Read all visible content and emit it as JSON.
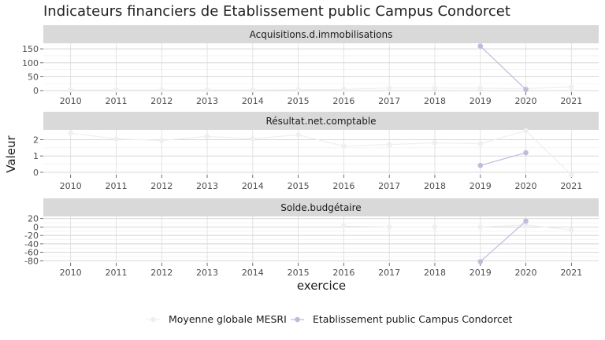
{
  "chart_data": {
    "type": "line",
    "title": "Indicateurs financiers de Etablissement public Campus Condorcet",
    "xlabel": "exercice",
    "ylabel": "Valeur",
    "x": [
      2010,
      2011,
      2012,
      2013,
      2014,
      2015,
      2016,
      2017,
      2018,
      2019,
      2020,
      2021
    ],
    "legend_position": "bottom",
    "grid": true,
    "series_styles": [
      {
        "name": "Moyenne globale MESRI",
        "color": "#efefef"
      },
      {
        "name": "Etablissement public Campus Condorcet",
        "color": "#bcbddc"
      }
    ],
    "panels": [
      {
        "strip": "Acquisitions.d.immobilisations",
        "ylim": [
          -5,
          170
        ],
        "yticks": [
          0,
          50,
          100,
          150
        ],
        "series": [
          {
            "name": "Moyenne globale MESRI",
            "values": [
              3,
              3,
              3,
              3,
              3,
              4,
              5,
              10,
              10,
              9,
              8,
              13
            ]
          },
          {
            "name": "Etablissement public Campus Condorcet",
            "values": [
              null,
              null,
              null,
              null,
              null,
              null,
              null,
              null,
              null,
              160,
              4,
              null
            ]
          }
        ]
      },
      {
        "strip": "Résultat.net.comptable",
        "ylim": [
          -0.15,
          2.6
        ],
        "yticks": [
          0,
          1,
          2
        ],
        "series": [
          {
            "name": "Moyenne globale MESRI",
            "values": [
              2.4,
              2.05,
              1.95,
              2.2,
              2.05,
              2.3,
              1.6,
              1.7,
              1.8,
              1.75,
              2.55,
              -0.15
            ]
          },
          {
            "name": "Etablissement public Campus Condorcet",
            "values": [
              null,
              null,
              null,
              null,
              null,
              null,
              null,
              null,
              null,
              0.42,
              1.2,
              null
            ]
          }
        ]
      },
      {
        "strip": "Solde.budgétaire",
        "ylim": [
          -85,
          25
        ],
        "yticks": [
          20,
          0,
          -20,
          -40,
          -60,
          -80
        ],
        "series": [
          {
            "name": "Moyenne globale MESRI",
            "values": [
              null,
              null,
              null,
              null,
              null,
              null,
              2,
              0,
              0,
              0,
              5,
              -7
            ]
          },
          {
            "name": "Etablissement public Campus Condorcet",
            "values": [
              null,
              null,
              null,
              null,
              null,
              null,
              null,
              null,
              null,
              -82,
              14,
              null
            ]
          }
        ]
      }
    ]
  }
}
